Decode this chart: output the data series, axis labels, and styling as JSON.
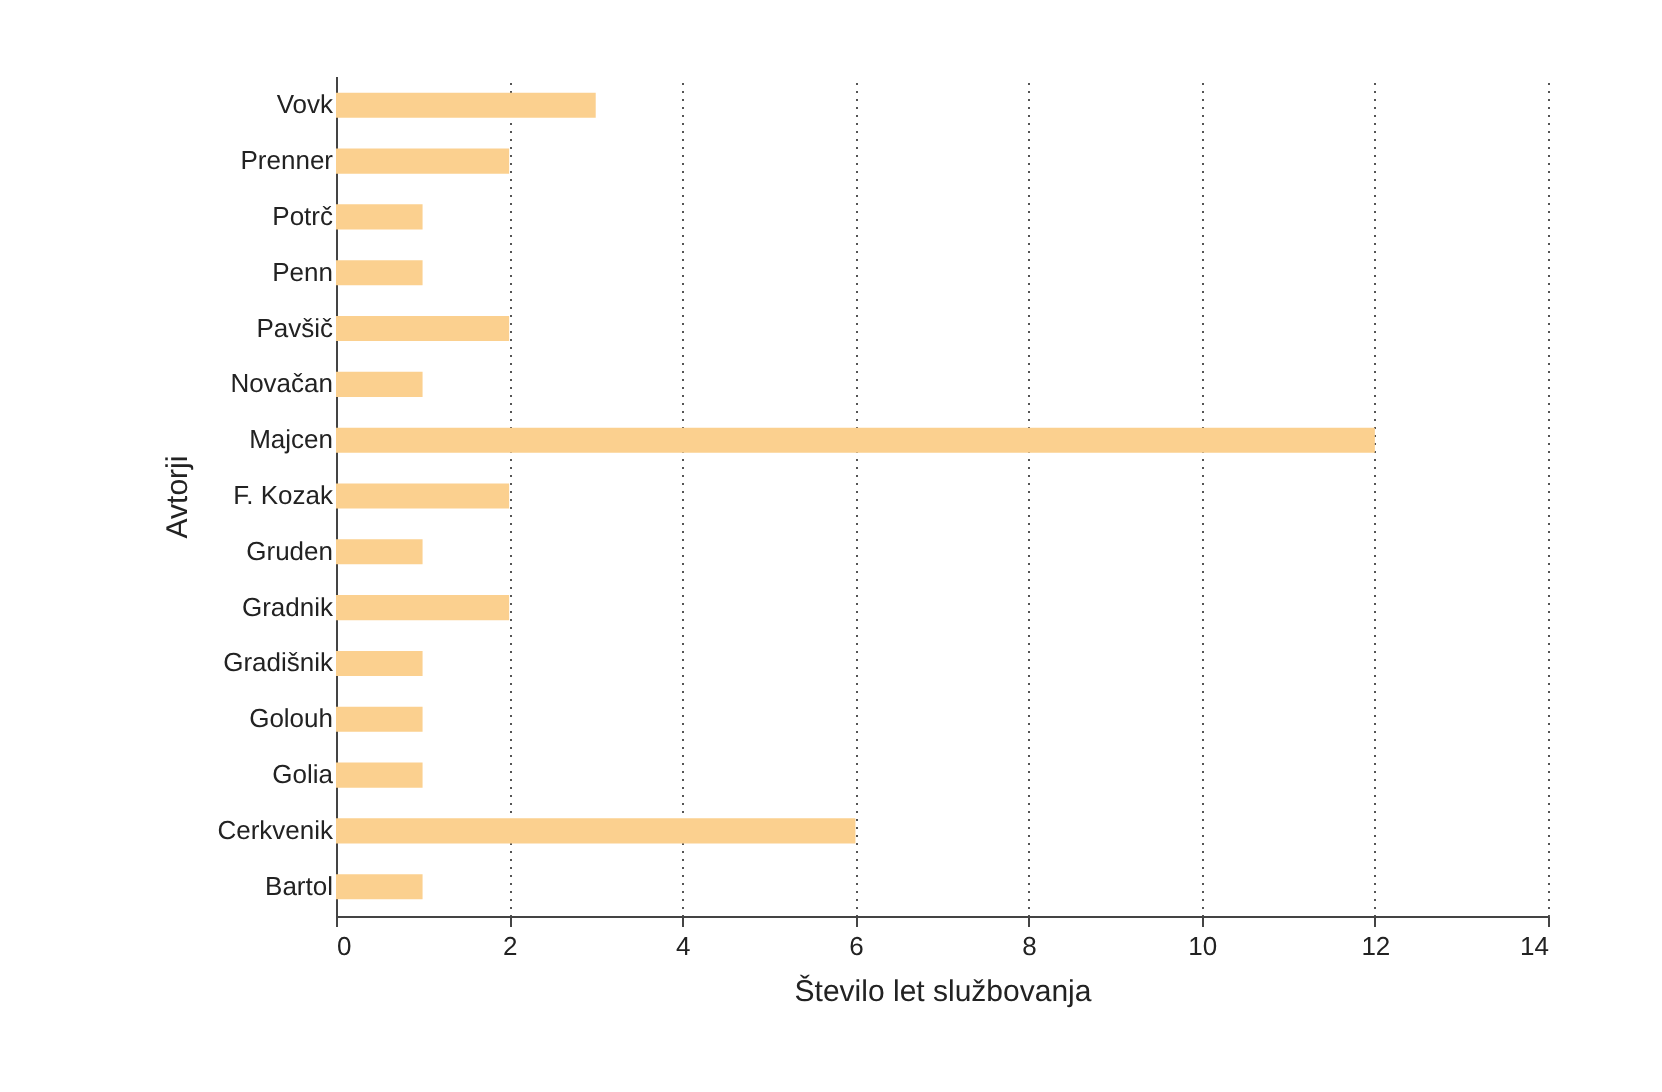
{
  "chart_data": {
    "type": "bar",
    "orientation": "horizontal",
    "categories": [
      "Vovk",
      "Prenner",
      "Potrč",
      "Penn",
      "Pavšič",
      "Novačan",
      "Majcen",
      "F. Kozak",
      "Gruden",
      "Gradnik",
      "Gradišnik",
      "Golouh",
      "Golia",
      "Cerkvenik",
      "Bartol"
    ],
    "values": [
      3,
      2,
      1,
      1,
      2,
      1,
      12,
      2,
      1,
      2,
      1,
      1,
      1,
      6,
      1
    ],
    "color": "#fbd08f",
    "xlim": [
      0,
      14
    ],
    "xticks": [
      0,
      2,
      4,
      6,
      8,
      10,
      12,
      14
    ],
    "xlabel": "Število let službovanja",
    "ylabel": "Avtorji",
    "grid": "x"
  }
}
